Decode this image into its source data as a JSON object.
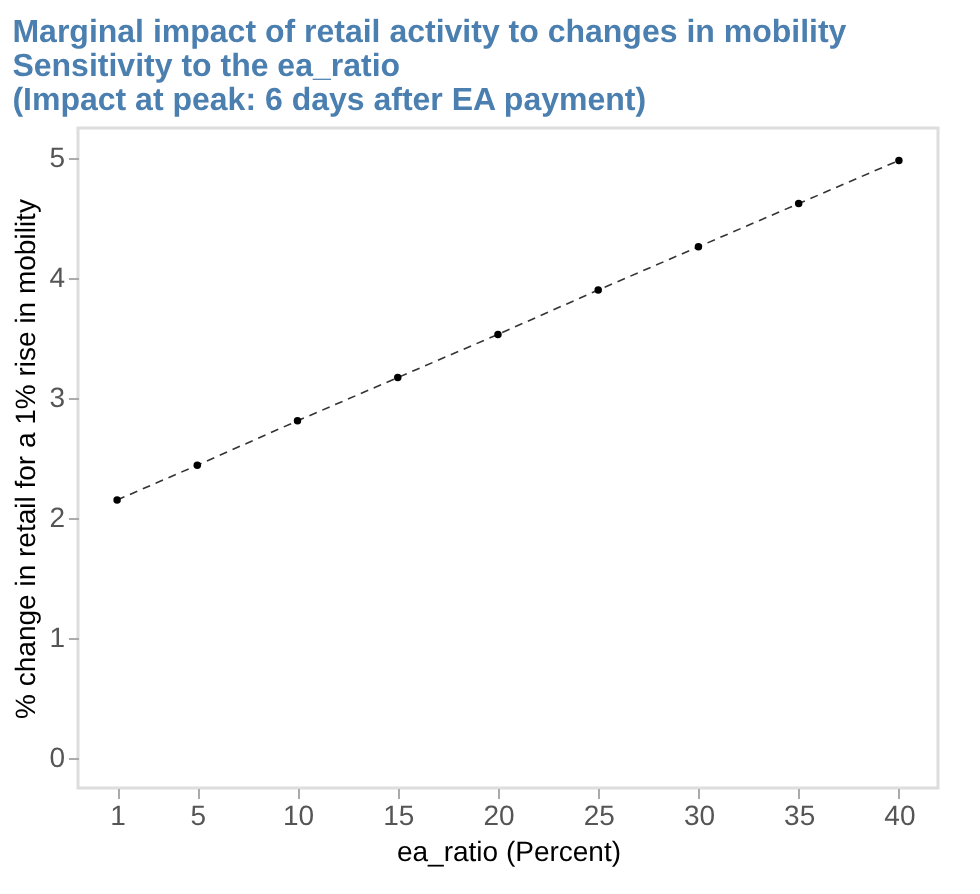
{
  "chart_data": {
    "type": "line",
    "title": [
      "Marginal impact of retail activity to changes in mobility",
      "Sensitivity to the ea_ratio",
      "(Impact at peak: 6 days after EA payment)"
    ],
    "xlabel": "ea_ratio (Percent)",
    "ylabel": "% change in retail for a 1% rise in mobility",
    "x": [
      1,
      5,
      10,
      15,
      20,
      25,
      30,
      35,
      40
    ],
    "series": [
      {
        "color": "#000000",
        "values": [
          2.15,
          2.44,
          2.81,
          3.17,
          3.53,
          3.9,
          4.26,
          4.62,
          4.98
        ]
      }
    ],
    "xlim": [
      -0.95,
      41.95
    ],
    "ylim": [
      -0.25,
      5.25
    ],
    "xticks": [
      1,
      5,
      10,
      15,
      20,
      25,
      30,
      35,
      40
    ],
    "yticks": [
      0,
      1,
      2,
      3,
      4,
      5
    ],
    "marker": "circle",
    "line_style": "dashed",
    "grid": false
  }
}
